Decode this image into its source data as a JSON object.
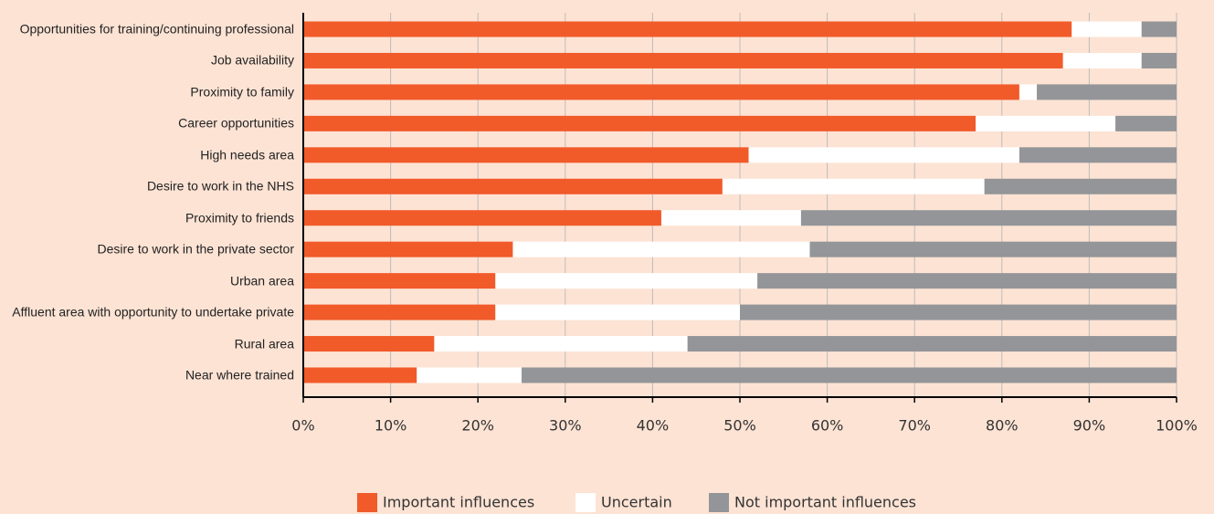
{
  "chart_data": {
    "type": "stacked_barh",
    "categories": [
      "Opportunities for training/continuing professional",
      "Job availability",
      "Proximity to family",
      "Career opportunities",
      "High needs area",
      "Desire to work in the NHS",
      "Proximity to friends",
      "Desire to work in the private sector",
      "Urban area",
      "Affluent area with opportunity to undertake private",
      "Rural area",
      "Near where trained"
    ],
    "series": [
      {
        "name": "Important influences",
        "color": "#f15a29",
        "values": [
          88,
          87,
          82,
          77,
          51,
          48,
          41,
          24,
          22,
          22,
          15,
          13
        ]
      },
      {
        "name": "Uncertain",
        "color": "#ffffff",
        "values": [
          8,
          9,
          2,
          16,
          31,
          30,
          16,
          34,
          30,
          28,
          29,
          12
        ]
      },
      {
        "name": "Not important influences",
        "color": "#939598",
        "values": [
          4,
          4,
          16,
          7,
          18,
          22,
          43,
          42,
          48,
          50,
          56,
          75
        ]
      }
    ],
    "xlim": [
      0,
      100
    ],
    "xticks": [
      {
        "value": 0,
        "label": "0%"
      },
      {
        "value": 10,
        "label": "10%"
      },
      {
        "value": 20,
        "label": "20%"
      },
      {
        "value": 30,
        "label": "30%"
      },
      {
        "value": 40,
        "label": "40%"
      },
      {
        "value": 50,
        "label": "50%"
      },
      {
        "value": 60,
        "label": "60%"
      },
      {
        "value": 70,
        "label": "70%"
      },
      {
        "value": 80,
        "label": "80%"
      },
      {
        "value": 90,
        "label": "90%"
      },
      {
        "value": 100,
        "label": "100%"
      }
    ],
    "grid": true,
    "legend": "bottom"
  }
}
